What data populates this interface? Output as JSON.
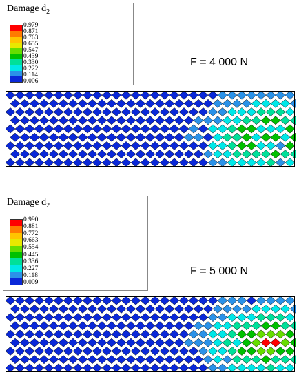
{
  "panels": [
    {
      "legend_title": "Damage d",
      "legend_subscript": "2",
      "legend_values": [
        "0.979",
        "0.871",
        "0.763",
        "0.655",
        "0.547",
        "0.439",
        "0.330",
        "0.222",
        "0.114",
        "0.006"
      ],
      "force_label": "F = 4 000 N"
    },
    {
      "legend_title": "Damage d",
      "legend_subscript": "2",
      "legend_values": [
        "0.990",
        "0.881",
        "0.772",
        "0.663",
        "0.554",
        "0.445",
        "0.336",
        "0.227",
        "0.118",
        "0.009"
      ],
      "force_label": "F = 5 000 N"
    }
  ],
  "colors": {
    "scale": [
      "#ff0000",
      "#ff7a00",
      "#ffc400",
      "#e8e800",
      "#66dd00",
      "#00c000",
      "#00e09a",
      "#00e8e8",
      "#2b92e8",
      "#0a28d8"
    ],
    "mesh_line": "#000000"
  }
}
